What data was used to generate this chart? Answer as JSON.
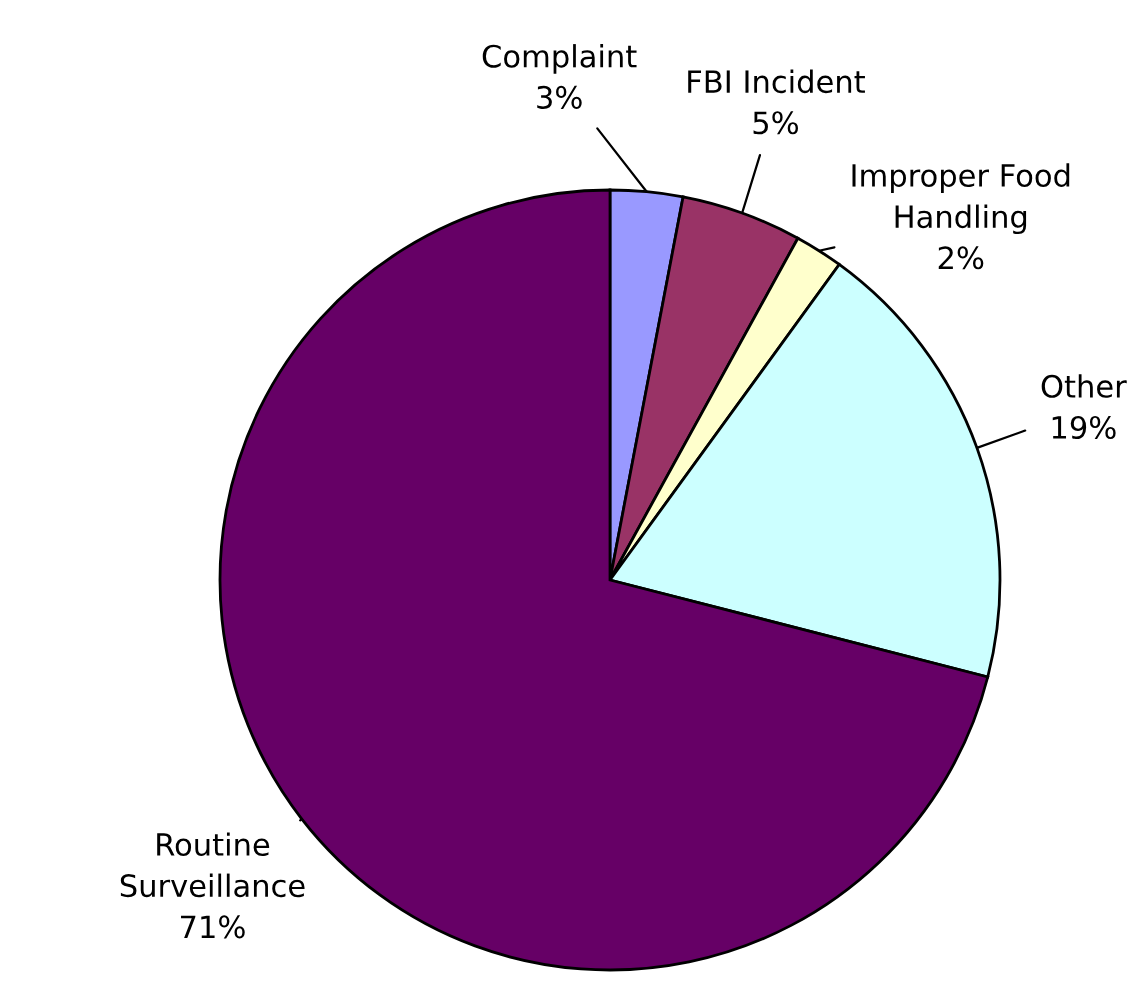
{
  "chart_data": {
    "type": "pie",
    "categories": [
      "Complaint",
      "FBI Incident",
      "Improper Food Handling",
      "Other",
      "Routine Surveillance"
    ],
    "values": [
      3,
      5,
      2,
      19,
      71
    ],
    "colors": [
      "#9999ff",
      "#993366",
      "#ffffcc",
      "#ccffff",
      "#660066"
    ],
    "value_labels": [
      "3%",
      "5%",
      "2%",
      "19%",
      "71%"
    ]
  }
}
